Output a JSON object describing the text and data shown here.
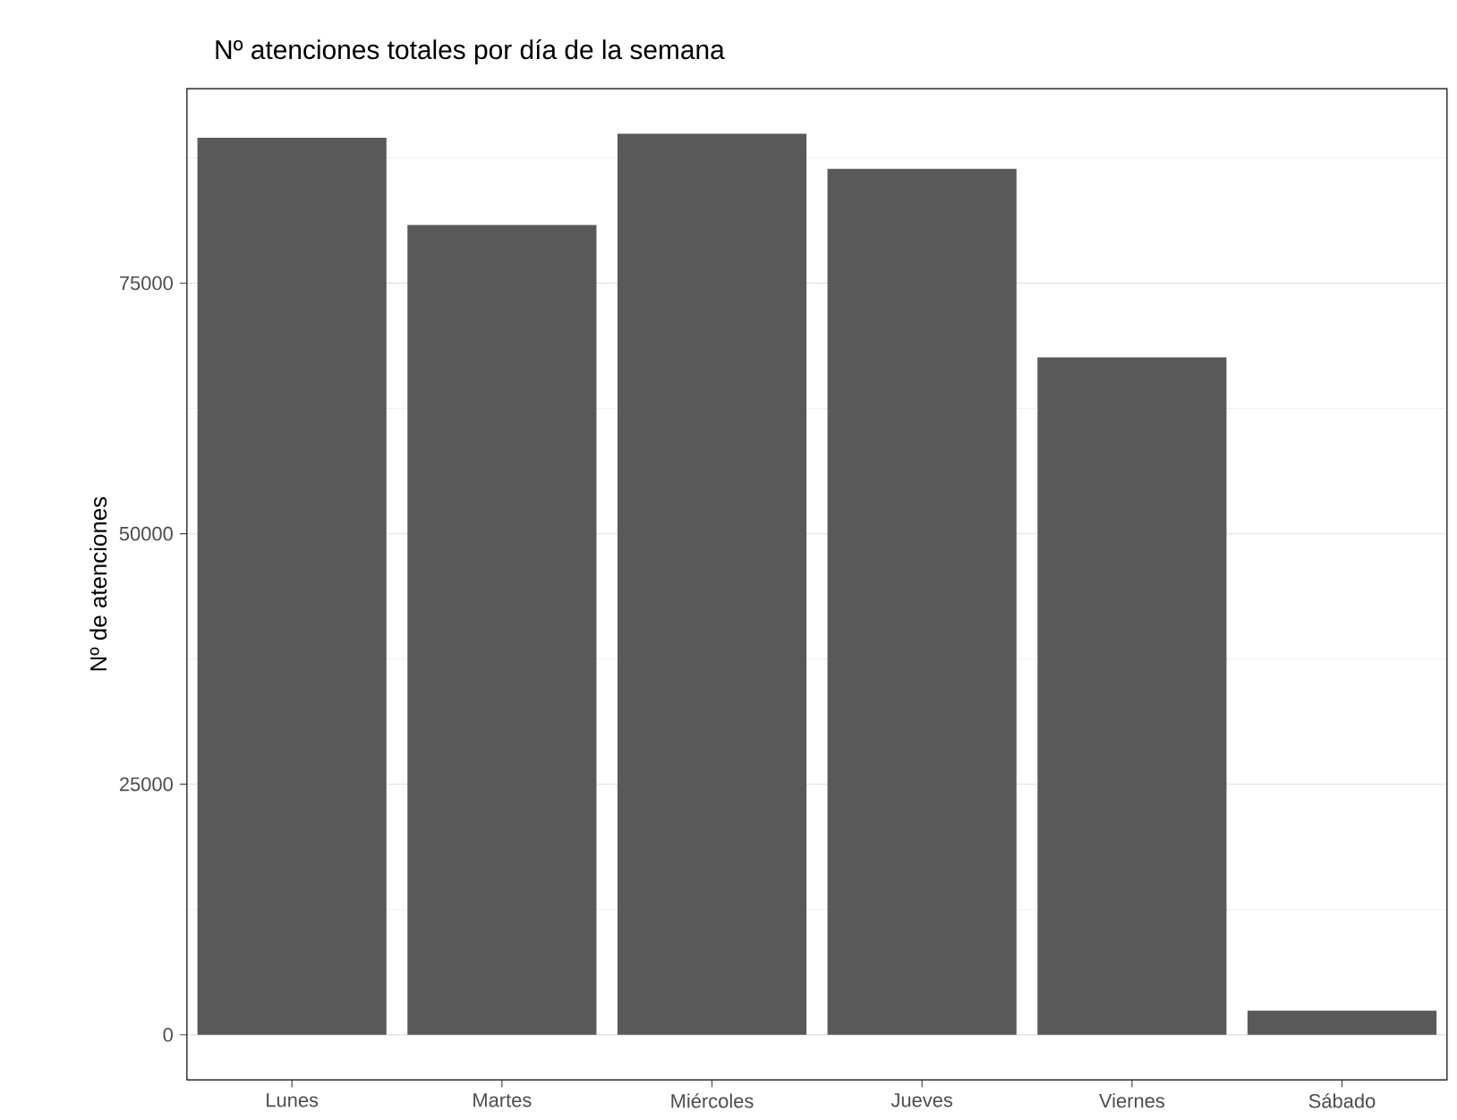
{
  "chart_data": {
    "type": "bar",
    "title": "Nº atenciones totales por día de la semana",
    "ylabel": "Nº de atenciones",
    "categories": [
      "Lunes",
      "Martes",
      "Miércoles",
      "Jueves",
      "Viernes",
      "Sábado"
    ],
    "values": [
      89500,
      80800,
      89900,
      86400,
      67600,
      2400
    ],
    "color": "#595959",
    "ylim": [
      -4500,
      94400
    ],
    "yticks": [
      0,
      25000,
      50000,
      75000
    ],
    "grid": "y"
  }
}
